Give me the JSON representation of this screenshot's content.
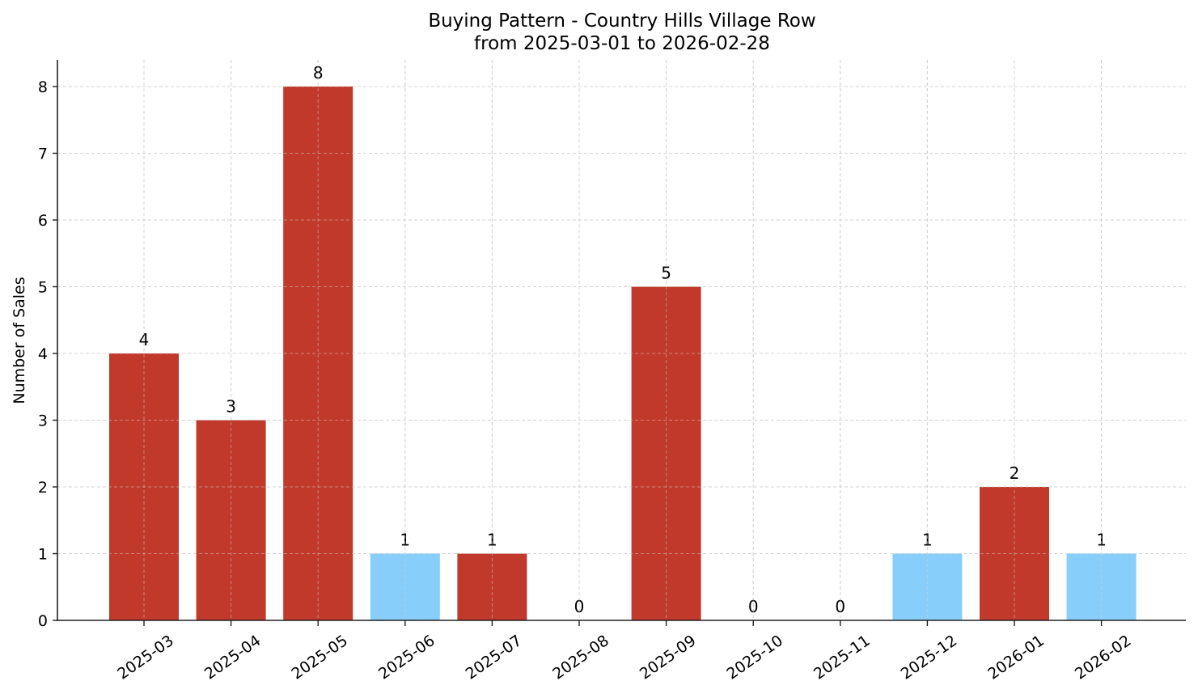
{
  "chart_data": {
    "type": "bar",
    "title": "Buying Pattern - Country Hills Village Row",
    "subtitle": "from 2025-03-01 to 2026-02-28",
    "xlabel": "",
    "ylabel": "Number of Sales",
    "categories": [
      "2025-03",
      "2025-04",
      "2025-05",
      "2025-06",
      "2025-07",
      "2025-08",
      "2025-09",
      "2025-10",
      "2025-11",
      "2025-12",
      "2026-01",
      "2026-02"
    ],
    "values": [
      4,
      3,
      8,
      1,
      1,
      0,
      5,
      0,
      0,
      1,
      2,
      1
    ],
    "bar_colors": [
      "#c0392b",
      "#c0392b",
      "#c0392b",
      "#87cefa",
      "#c0392b",
      "#c0392b",
      "#c0392b",
      "#c0392b",
      "#c0392b",
      "#87cefa",
      "#c0392b",
      "#87cefa"
    ],
    "yticks": [
      0,
      1,
      2,
      3,
      4,
      5,
      6,
      7,
      8
    ],
    "ylim": [
      0,
      8.4
    ],
    "grid": true,
    "legend": null,
    "data_labels": true
  },
  "colors": {
    "high": "#c0392b",
    "low": "#87cefa",
    "grid": "#d3d3d3",
    "axis": "#222222"
  }
}
